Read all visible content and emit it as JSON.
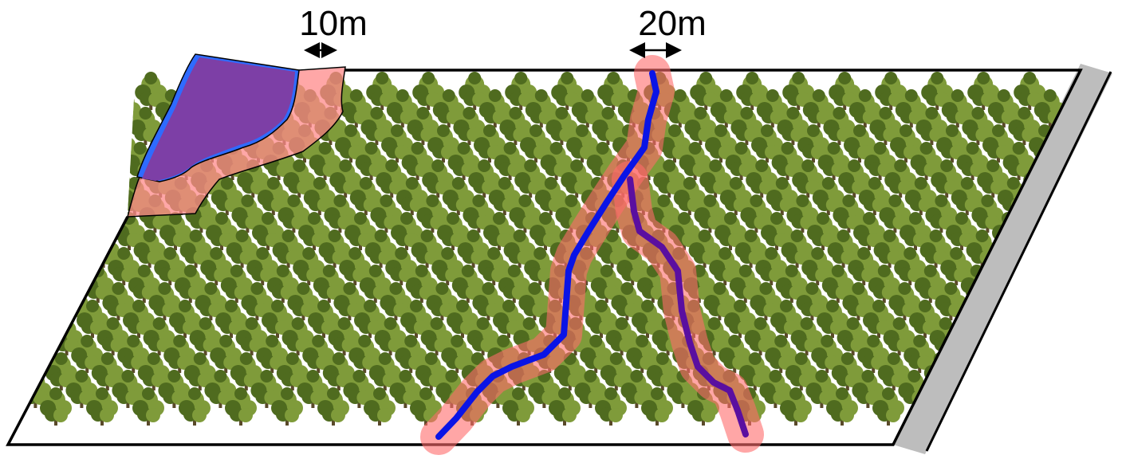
{
  "labels": {
    "buffer_small": "10m",
    "buffer_large": "20m"
  },
  "colors": {
    "tree_foliage": "#4f6b1f",
    "tree_foliage_light": "#7f9b3a",
    "tree_trunk": "#5a4a2a",
    "buffer_zone": "#ff6b6b",
    "stream_blue": "#0a14e6",
    "stream_purple": "#5a0fa0",
    "pond_blue": "#2f6bff",
    "pond_purple": "#7d3fa6",
    "road": "#bdbdbd",
    "outline": "#000000"
  },
  "icons": {
    "tree": "tree-icon",
    "arrow": "double-arrow-icon"
  }
}
